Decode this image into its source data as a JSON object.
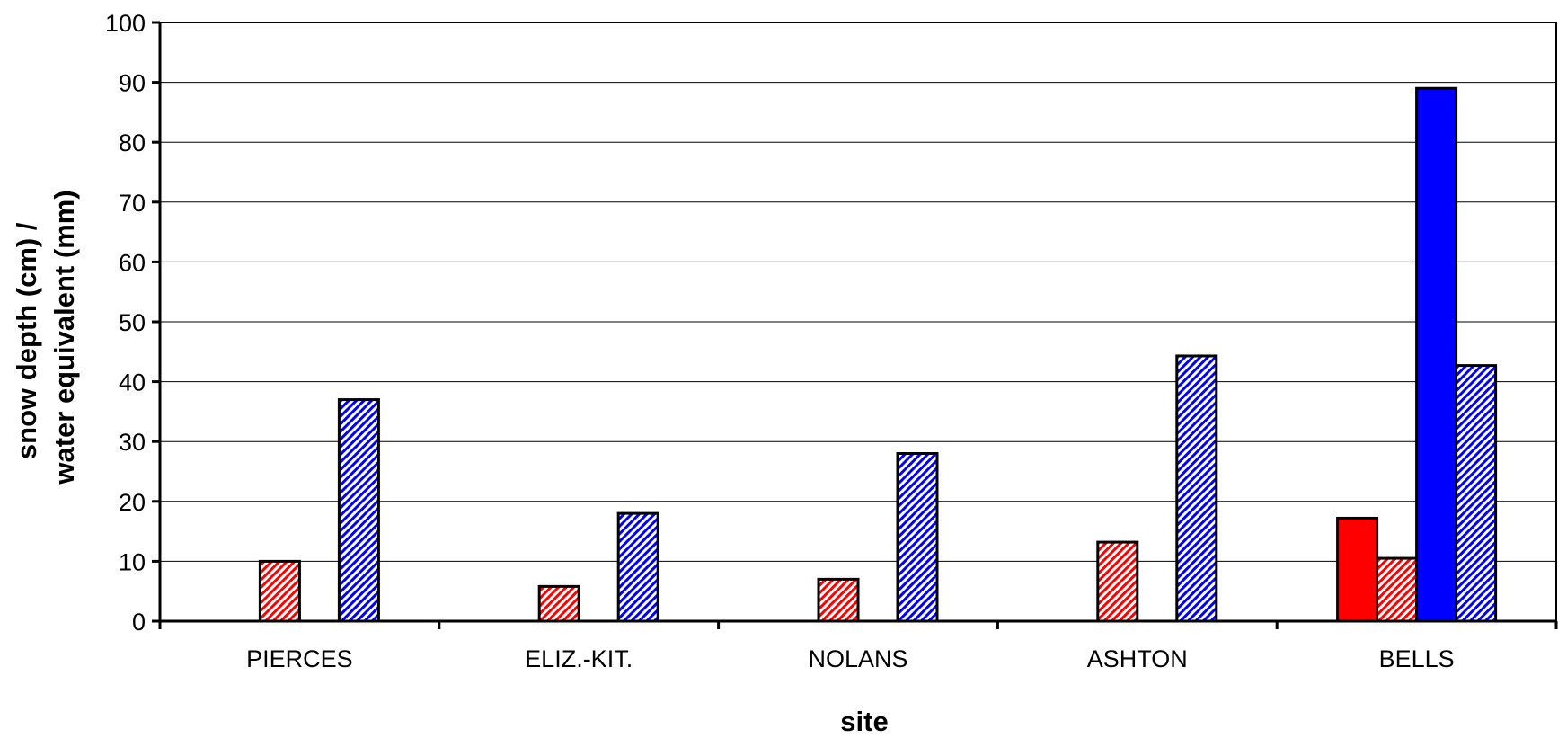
{
  "chart_data": {
    "type": "bar",
    "xlabel": "site",
    "ylabel_lines": [
      "snow depth (cm) /",
      "water equivalent (mm)"
    ],
    "ylim": [
      0,
      100
    ],
    "yticks": [
      0,
      10,
      20,
      30,
      40,
      50,
      60,
      70,
      80,
      90,
      100
    ],
    "grid": true,
    "legend": "none",
    "categories": [
      "PIERCES",
      "ELIZ.-KIT.",
      "NOLANS",
      "ASHTON",
      "BELLS"
    ],
    "series": [
      {
        "fill": "solid",
        "color": "#ff0000",
        "values": [
          null,
          null,
          null,
          null,
          17.2
        ]
      },
      {
        "fill": "hatched",
        "color": "#ff0000",
        "values": [
          10,
          5.8,
          7,
          13.2,
          10.5
        ]
      },
      {
        "fill": "solid",
        "color": "#0000ff",
        "values": [
          null,
          null,
          null,
          null,
          89
        ]
      },
      {
        "fill": "hatched",
        "color": "#0000ff",
        "values": [
          37,
          18,
          28,
          44.3,
          42.7
        ]
      }
    ]
  }
}
